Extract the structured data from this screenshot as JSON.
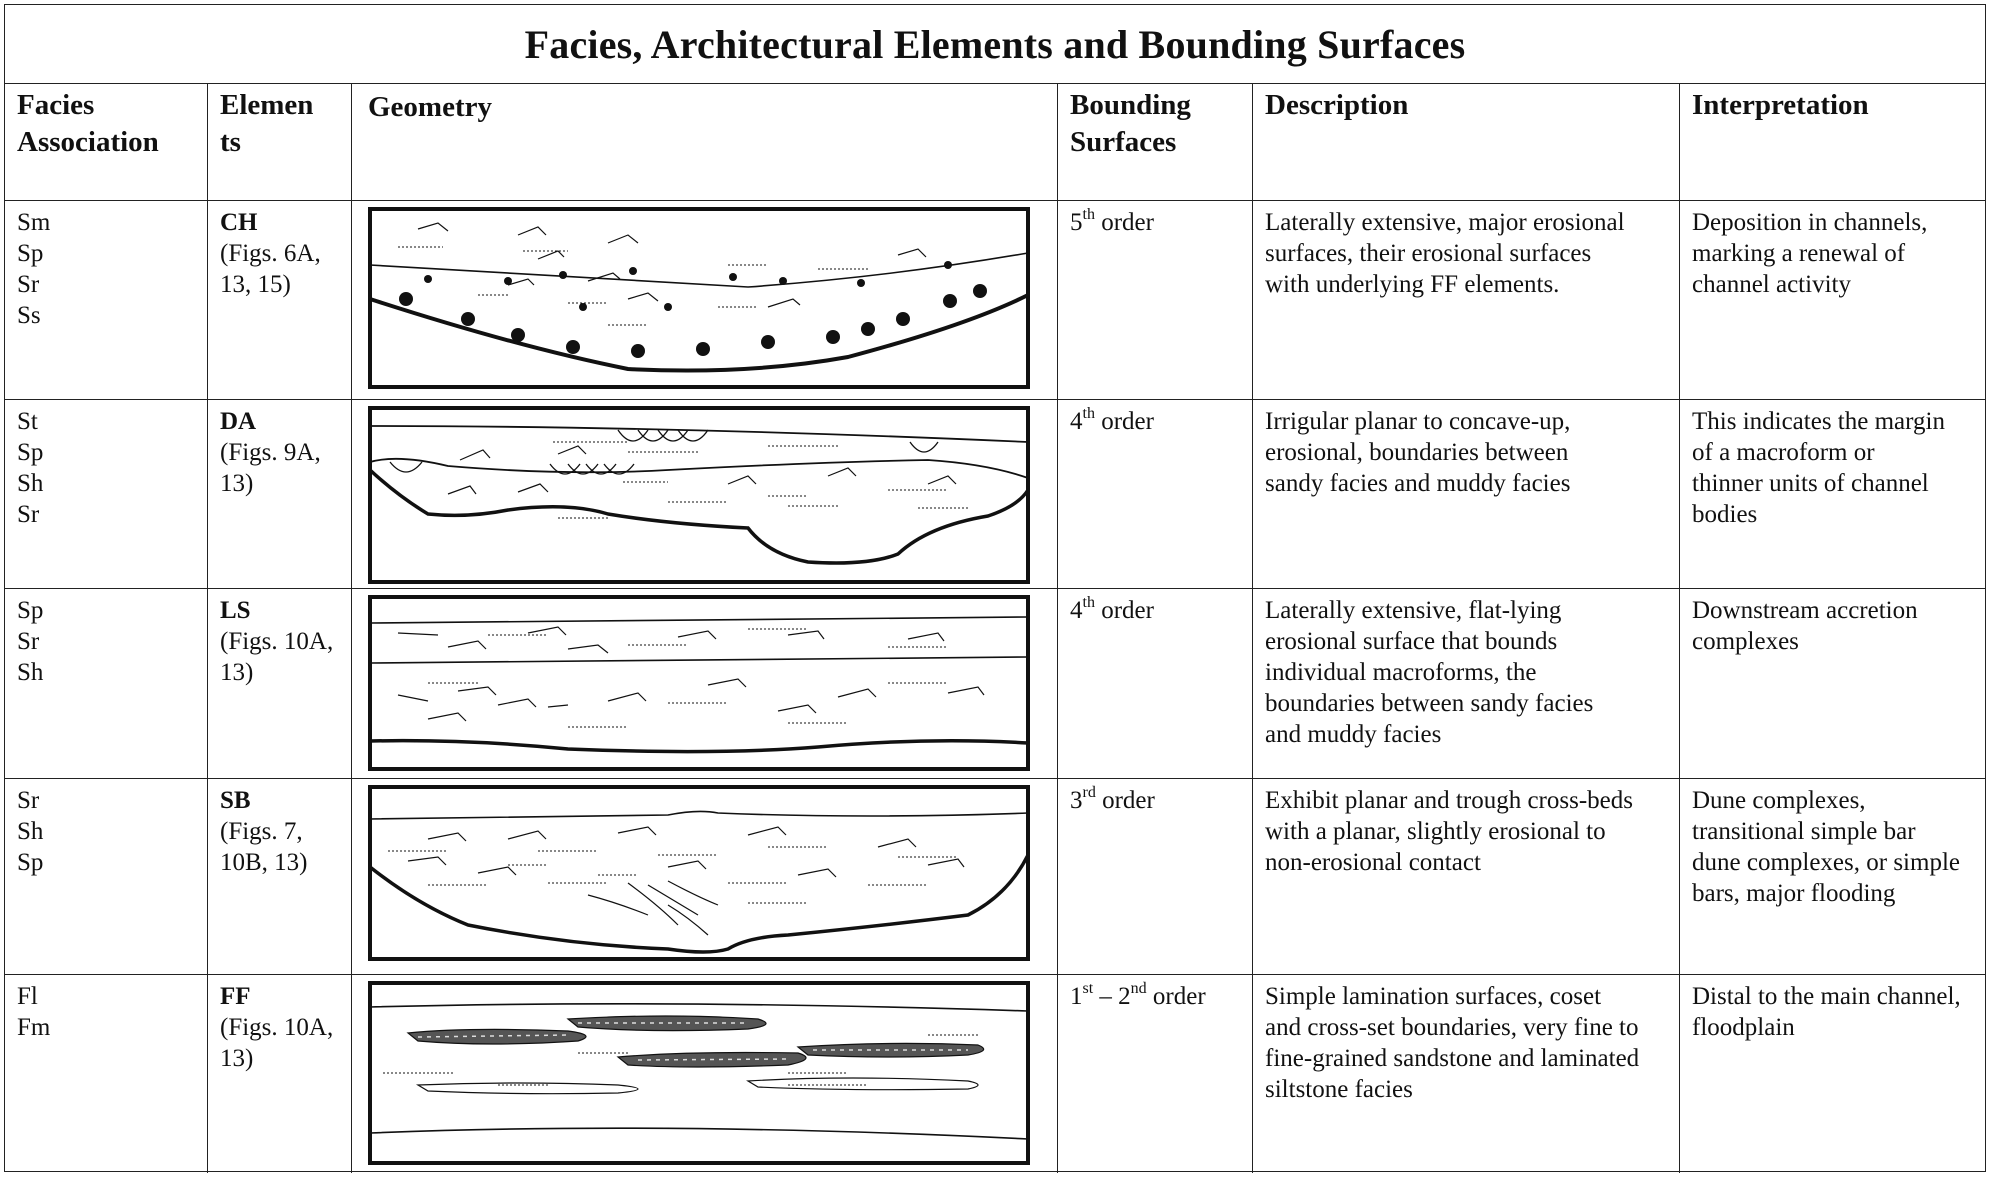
{
  "title": "Facies, Architectural Elements and Bounding Surfaces",
  "headers": {
    "facies": [
      "Facies",
      "Association"
    ],
    "elements": [
      "Elemen",
      "ts"
    ],
    "geometry": "Geometry",
    "bounding": [
      "Bounding",
      "Surfaces"
    ],
    "description": "Description",
    "interpretation": "Interpretation"
  },
  "rows": [
    {
      "facies": [
        "Sm",
        "Sp",
        "Sr",
        "Ss"
      ],
      "element": "CH",
      "figs": [
        "(Figs. 6A,",
        "13, 15)"
      ],
      "order_num": "5",
      "order_sup": "th",
      "order_suffix": " order",
      "description": [
        "Laterally extensive, major erosional",
        "surfaces, their erosional surfaces",
        "with underlying FF elements."
      ],
      "interpretation": [
        "Deposition in channels,",
        "marking a renewal of",
        "channel activity"
      ]
    },
    {
      "facies": [
        "St",
        "Sp",
        "Sh",
        "Sr"
      ],
      "element": "DA",
      "figs": [
        "(Figs. 9A,",
        "13)"
      ],
      "order_num": "4",
      "order_sup": "th",
      "order_suffix": " order",
      "description": [
        "Irrigular planar to concave-up,",
        "erosional, boundaries between",
        "sandy facies and muddy facies"
      ],
      "interpretation": [
        "This indicates the margin",
        "of a macroform or",
        "thinner units of channel",
        "bodies"
      ]
    },
    {
      "facies": [
        "Sp",
        "Sr",
        "Sh"
      ],
      "element": "LS",
      "figs": [
        "(Figs. 10A,",
        "13)"
      ],
      "order_num": "4",
      "order_sup": "th",
      "order_suffix": " order",
      "description": [
        "Laterally extensive, flat-lying",
        "erosional surface that bounds",
        "individual macroforms, the",
        "boundaries between sandy facies",
        "and muddy facies"
      ],
      "interpretation": [
        "Downstream accretion",
        "complexes"
      ]
    },
    {
      "facies": [
        "Sr",
        "Sh",
        "Sp"
      ],
      "element": "SB",
      "figs": [
        "(Figs. 7,",
        "10B, 13)"
      ],
      "order_num": "3",
      "order_sup": "rd",
      "order_suffix": " order",
      "description": [
        "Exhibit planar and trough cross-beds",
        "with a planar, slightly erosional to",
        "non-erosional contact"
      ],
      "interpretation": [
        "Dune complexes,",
        "transitional simple bar",
        "dune complexes, or simple",
        "bars, major flooding"
      ]
    },
    {
      "facies": [
        "Fl",
        "Fm"
      ],
      "element": "FF",
      "figs": [
        "(Figs. 10A,",
        "13)"
      ],
      "order_num": "1",
      "order_sup": "st",
      "order_mid": " – 2",
      "order_sup2": "nd",
      "order_suffix": " order",
      "description": [
        "Simple lamination surfaces, coset",
        "and cross-set boundaries, very fine to",
        "fine-grained sandstone and laminated",
        "siltstone facies"
      ],
      "interpretation": [
        "Distal to the main channel,",
        "floodplain"
      ]
    }
  ]
}
